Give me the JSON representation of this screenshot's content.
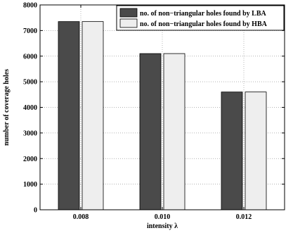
{
  "chart_data": {
    "type": "bar",
    "categories": [
      "0.008",
      "0.010",
      "0.012"
    ],
    "series": [
      {
        "name": "no. of non−triangular holes found by LBA",
        "values": [
          7350,
          6100,
          4600
        ],
        "color": "#4a4a4a"
      },
      {
        "name": "no. of non−triangular holes found by HBA",
        "values": [
          7350,
          6100,
          4600
        ],
        "color": "#eeeeee"
      }
    ],
    "title": "",
    "xlabel": "intensity λ",
    "ylabel": "number of coverage holes",
    "ylim": [
      0,
      8000
    ],
    "yticks": [
      "0",
      "1000",
      "2000",
      "3000",
      "4000",
      "5000",
      "6000",
      "7000",
      "8000"
    ],
    "grid": true,
    "legend_position": "top-right"
  }
}
